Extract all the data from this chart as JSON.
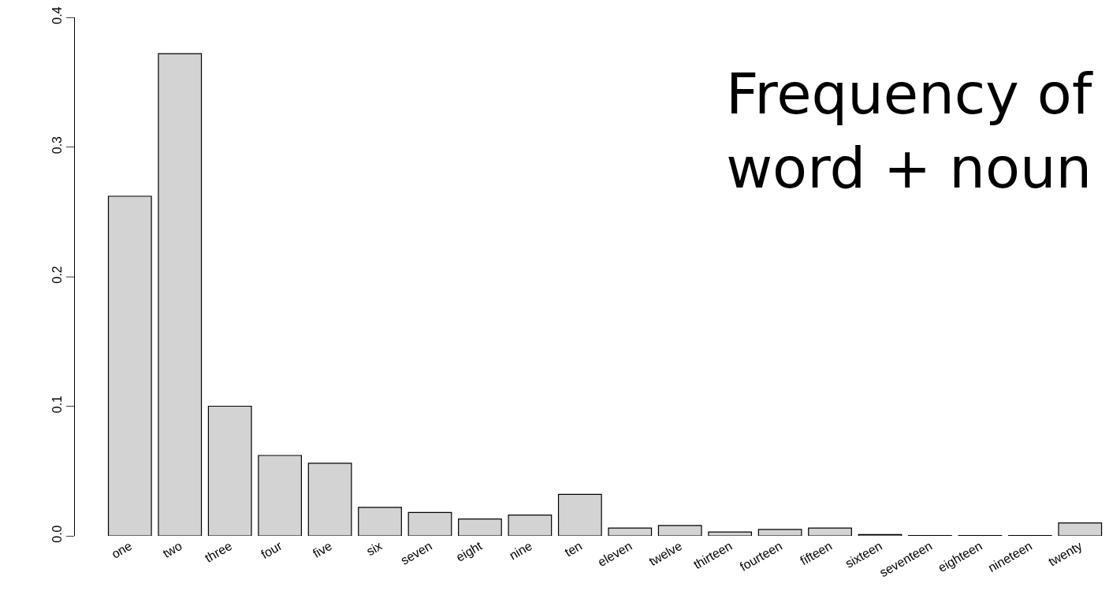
{
  "chart_data": {
    "type": "bar",
    "title": "Frequency of\nword + noun",
    "categories": [
      "one",
      "two",
      "three",
      "four",
      "five",
      "six",
      "seven",
      "eight",
      "nine",
      "ten",
      "eleven",
      "twelve",
      "thirteen",
      "fourteen",
      "fifteen",
      "sixteen",
      "seventeen",
      "eighteen",
      "nineteen",
      "twenty"
    ],
    "values": [
      0.262,
      0.372,
      0.1,
      0.062,
      0.056,
      0.022,
      0.018,
      0.013,
      0.016,
      0.032,
      0.006,
      0.008,
      0.003,
      0.005,
      0.006,
      0.001,
      0.0003,
      0.0003,
      0.0003,
      0.01
    ],
    "color": "#d3d3d3",
    "ylim": [
      0,
      0.4
    ],
    "yticks": [
      {
        "value": 0,
        "label": "0.0"
      },
      {
        "value": 0.1,
        "label": "0.1"
      },
      {
        "value": 0.2,
        "label": "0.2"
      },
      {
        "value": 0.3,
        "label": "0.3"
      },
      {
        "value": 0.4,
        "label": "0.4"
      }
    ],
    "legend": false
  }
}
